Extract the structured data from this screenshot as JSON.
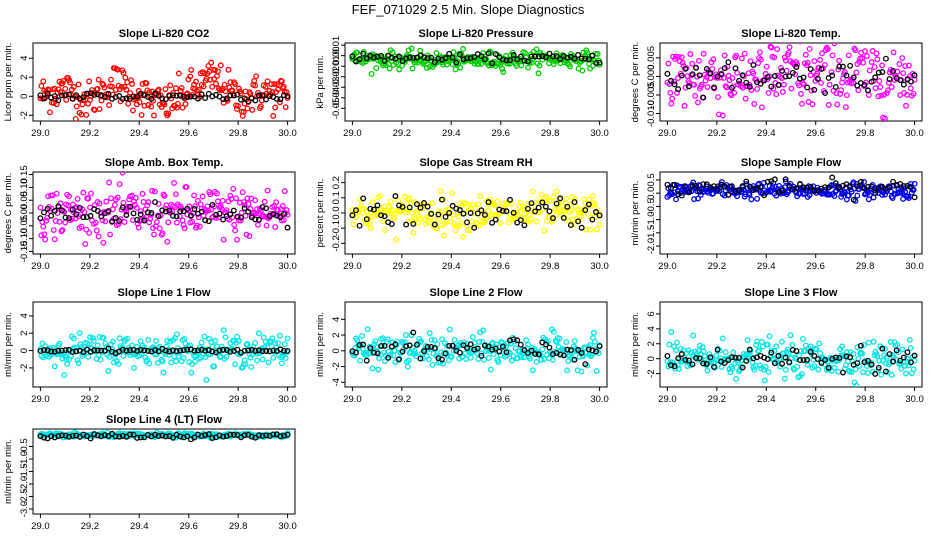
{
  "figure_title": "FEF_071029  2.5 Min. Slope Diagnostics",
  "x_ticks": [
    "29.0",
    "29.2",
    "29.4",
    "29.6",
    "29.8",
    "30.0"
  ],
  "chart_data": [
    {
      "type": "scatter",
      "title": "Slope Li-820 CO2",
      "ylabel": "Licor ppm per min.",
      "color": "#ff0000",
      "xlim": [
        28.97,
        30.03
      ],
      "ylim": [
        -2.6,
        5.6
      ],
      "yticks": [
        -2,
        0,
        2,
        4
      ],
      "ytick_labels": [
        "-2",
        "0",
        "2",
        "4"
      ],
      "series_spread": 1.0,
      "ref_spread": 0.25,
      "series": [
        {
          "name": "",
          "x": [
            29.0,
            29.1,
            29.2,
            29.3,
            29.4,
            29.5,
            29.6,
            29.7,
            29.8,
            29.9,
            30.0
          ],
          "y": [
            0.1,
            0.8,
            -0.5,
            1.5,
            0.2,
            -1.0,
            0.5,
            2.0,
            -0.3,
            0.4,
            0.0
          ]
        },
        {
          "name": "",
          "x": [
            29.0,
            29.2,
            29.4,
            29.6,
            29.8,
            30.0
          ],
          "y": [
            0.0,
            0.0,
            0.0,
            0.0,
            0.0,
            0.0
          ]
        }
      ]
    },
    {
      "type": "scatter",
      "title": "Slope Li-820 Pressure",
      "ylabel": "kPa per min.",
      "color": "#00cc00",
      "xlim": [
        28.97,
        30.03
      ],
      "ylim": [
        -0.062,
        0.012
      ],
      "yticks": [
        -0.05,
        -0.04,
        -0.03,
        -0.02,
        -0.01,
        0.0,
        0.01
      ],
      "ytick_labels": [
        "-0.05",
        "-0.04",
        "-0.03",
        "-0.02",
        "-0.01",
        "0.00",
        "0.01"
      ],
      "series_spread": 0.004,
      "ref_spread": 0.002,
      "series": [
        {
          "name": "",
          "x": [
            29.0,
            29.2,
            29.4,
            29.6,
            29.8,
            30.0
          ],
          "y": [
            -0.003,
            -0.004,
            -0.005,
            -0.004,
            -0.003,
            -0.004
          ]
        },
        {
          "name": "",
          "x": [
            29.0,
            29.2,
            29.4,
            29.6,
            29.8,
            30.0
          ],
          "y": [
            -0.002,
            -0.002,
            -0.003,
            -0.002,
            -0.002,
            -0.003
          ]
        }
      ]
    },
    {
      "type": "scatter",
      "title": "Slope Li-820 Temp.",
      "ylabel": "degrees C per min.",
      "color": "#ff00ff",
      "xlim": [
        28.97,
        30.03
      ],
      "ylim": [
        -0.012,
        0.009
      ],
      "yticks": [
        -0.01,
        -0.005,
        0.0,
        0.005
      ],
      "ytick_labels": [
        "-0.010",
        "-0.005",
        "0.000",
        "0.005"
      ],
      "series_spread": 0.005,
      "ref_spread": 0.002,
      "series": [
        {
          "name": "",
          "x": [
            29.0,
            29.2,
            29.4,
            29.6,
            29.8,
            30.0
          ],
          "y": [
            0.0,
            0.0,
            0.0,
            0.0,
            0.0,
            0.0
          ]
        },
        {
          "name": "",
          "x": [
            29.0,
            29.2,
            29.4,
            29.6,
            29.8,
            30.0
          ],
          "y": [
            0.0,
            0.0,
            0.0,
            0.0,
            0.0,
            0.0
          ]
        }
      ]
    },
    {
      "type": "scatter",
      "title": "Slope Amb. Box Temp.",
      "ylabel": "degrees C per min.",
      "color": "#ff00ff",
      "xlim": [
        28.97,
        30.03
      ],
      "ylim": [
        -0.16,
        0.16
      ],
      "yticks": [
        -0.15,
        -0.1,
        -0.05,
        0.0,
        0.05,
        0.1,
        0.15
      ],
      "ytick_labels": [
        "-0.15",
        "-0.10",
        "-0.05",
        "0.00",
        "0.05",
        "0.10",
        "0.15"
      ],
      "series_spread": 0.05,
      "ref_spread": 0.02,
      "series": [
        {
          "name": "",
          "x": [
            29.0,
            29.2,
            29.4,
            29.6,
            29.8,
            30.0
          ],
          "y": [
            0.0,
            0.0,
            0.0,
            0.0,
            0.0,
            0.0
          ]
        },
        {
          "name": "",
          "x": [
            29.0,
            29.2,
            29.4,
            29.6,
            29.8,
            30.0
          ],
          "y": [
            0.0,
            0.0,
            0.0,
            0.0,
            0.0,
            0.0
          ]
        }
      ]
    },
    {
      "type": "scatter",
      "title": "Slope Gas Stream RH",
      "ylabel": "percent per min.",
      "color": "#ffff00",
      "xlim": [
        28.97,
        30.03
      ],
      "ylim": [
        -0.27,
        0.27
      ],
      "yticks": [
        -0.2,
        -0.1,
        0.0,
        0.1,
        0.2
      ],
      "ytick_labels": [
        "-0.2",
        "-0.1",
        "0.0",
        "0.1",
        "0.2"
      ],
      "series_spread": 0.06,
      "ref_spread": 0.05,
      "series": [
        {
          "name": "",
          "x": [
            29.0,
            29.2,
            29.4,
            29.6,
            29.8,
            30.0
          ],
          "y": [
            0.0,
            0.0,
            0.0,
            0.0,
            0.0,
            0.0
          ]
        },
        {
          "name": "",
          "x": [
            29.0,
            29.2,
            29.4,
            29.6,
            29.8,
            30.0
          ],
          "y": [
            0.0,
            0.0,
            0.0,
            0.0,
            0.0,
            0.0
          ]
        }
      ]
    },
    {
      "type": "scatter",
      "title": "Slope Sample Flow",
      "ylabel": "ml/min per min.",
      "color": "#0000ee",
      "xlim": [
        28.97,
        30.03
      ],
      "ylim": [
        -2.3,
        0.8
      ],
      "yticks": [
        -2.0,
        -1.5,
        -1.0,
        -0.5,
        0.0,
        0.5
      ],
      "ytick_labels": [
        "-2.0",
        "-1.5",
        "-1.0",
        "-0.5",
        "0.0",
        "0.5"
      ],
      "series_spread": 0.15,
      "ref_spread": 0.15,
      "series": [
        {
          "name": "",
          "x": [
            29.0,
            29.2,
            29.4,
            29.6,
            29.8,
            30.0
          ],
          "y": [
            0.1,
            0.1,
            0.1,
            0.1,
            0.1,
            0.1
          ]
        },
        {
          "name": "",
          "x": [
            29.0,
            29.2,
            29.4,
            29.6,
            29.8,
            30.0
          ],
          "y": [
            0.2,
            0.2,
            0.2,
            0.2,
            0.2,
            0.2
          ]
        }
      ]
    },
    {
      "type": "scatter",
      "title": "Slope Line 1 Flow",
      "ylabel": "ml/min per min.",
      "color": "#00e5e5",
      "xlim": [
        28.97,
        30.03
      ],
      "ylim": [
        -4.2,
        5.6
      ],
      "yticks": [
        -2,
        0,
        2,
        4
      ],
      "ytick_labels": [
        "-2",
        "0",
        "2",
        "4"
      ],
      "series_spread": 0.9,
      "ref_spread": 0.1,
      "series": [
        {
          "name": "",
          "x": [
            29.0,
            29.2,
            29.4,
            29.6,
            29.8,
            30.0
          ],
          "y": [
            0.0,
            0.0,
            0.0,
            0.0,
            0.0,
            0.0
          ]
        },
        {
          "name": "",
          "x": [
            29.0,
            29.2,
            29.4,
            29.6,
            29.8,
            30.0
          ],
          "y": [
            0.0,
            0.0,
            0.0,
            0.0,
            0.0,
            0.0
          ]
        }
      ]
    },
    {
      "type": "scatter",
      "title": "Slope Line 2 Flow",
      "ylabel": "ml/min per min.",
      "color": "#00e5e5",
      "xlim": [
        28.97,
        30.03
      ],
      "ylim": [
        -4.6,
        6.2
      ],
      "yticks": [
        -4,
        -2,
        0,
        2,
        4
      ],
      "ytick_labels": [
        "-4",
        "-2",
        "0",
        "2",
        "4"
      ],
      "series_spread": 1.0,
      "ref_spread": 0.8,
      "series": [
        {
          "name": "",
          "x": [
            29.0,
            29.2,
            29.4,
            29.6,
            29.8,
            30.0
          ],
          "y": [
            0.0,
            0.0,
            0.0,
            0.0,
            0.0,
            0.0
          ]
        },
        {
          "name": "",
          "x": [
            29.0,
            29.2,
            29.4,
            29.6,
            29.8,
            30.0
          ],
          "y": [
            0.0,
            0.0,
            0.0,
            0.0,
            0.0,
            0.0
          ]
        }
      ]
    },
    {
      "type": "scatter",
      "title": "Slope Line 3 Flow",
      "ylabel": "ml/min per min.",
      "color": "#00e5e5",
      "xlim": [
        28.97,
        30.03
      ],
      "ylim": [
        -3.8,
        7.6
      ],
      "yticks": [
        -2,
        0,
        2,
        4,
        6
      ],
      "ytick_labels": [
        "-2",
        "0",
        "2",
        "4",
        "6"
      ],
      "series_spread": 1.2,
      "ref_spread": 0.8,
      "series": [
        {
          "name": "",
          "x": [
            29.0,
            29.2,
            29.4,
            29.6,
            29.8,
            30.0
          ],
          "y": [
            0.0,
            0.0,
            0.0,
            0.0,
            0.0,
            0.0
          ]
        },
        {
          "name": "",
          "x": [
            29.0,
            29.2,
            29.4,
            29.6,
            29.8,
            30.0
          ],
          "y": [
            0.0,
            0.0,
            0.0,
            0.0,
            0.0,
            0.0
          ]
        }
      ]
    },
    {
      "type": "scatter",
      "title": "Slope Line 4 (LT) Flow",
      "ylabel": "ml/min per min.",
      "color": "#00e5e5",
      "xlim": [
        28.97,
        30.03
      ],
      "ylim": [
        -3.2,
        0.2
      ],
      "yticks": [
        -3.0,
        -2.5,
        -2.0,
        -1.5,
        -1.0,
        -0.5
      ],
      "ytick_labels": [
        "-3.0",
        "-2.5",
        "-2.0",
        "-1.5",
        "-1.0",
        "-0.5"
      ],
      "series_spread": 0.04,
      "ref_spread": 0.04,
      "series": [
        {
          "name": "",
          "x": [
            29.0,
            29.2,
            29.4,
            29.6,
            29.8,
            30.0
          ],
          "y": [
            -0.05,
            -0.05,
            -0.05,
            -0.05,
            -0.05,
            -0.05
          ]
        },
        {
          "name": "",
          "x": [
            29.0,
            29.2,
            29.4,
            29.6,
            29.8,
            30.0
          ],
          "y": [
            -0.08,
            -0.08,
            -0.08,
            -0.08,
            -0.08,
            -0.08
          ]
        }
      ]
    }
  ]
}
